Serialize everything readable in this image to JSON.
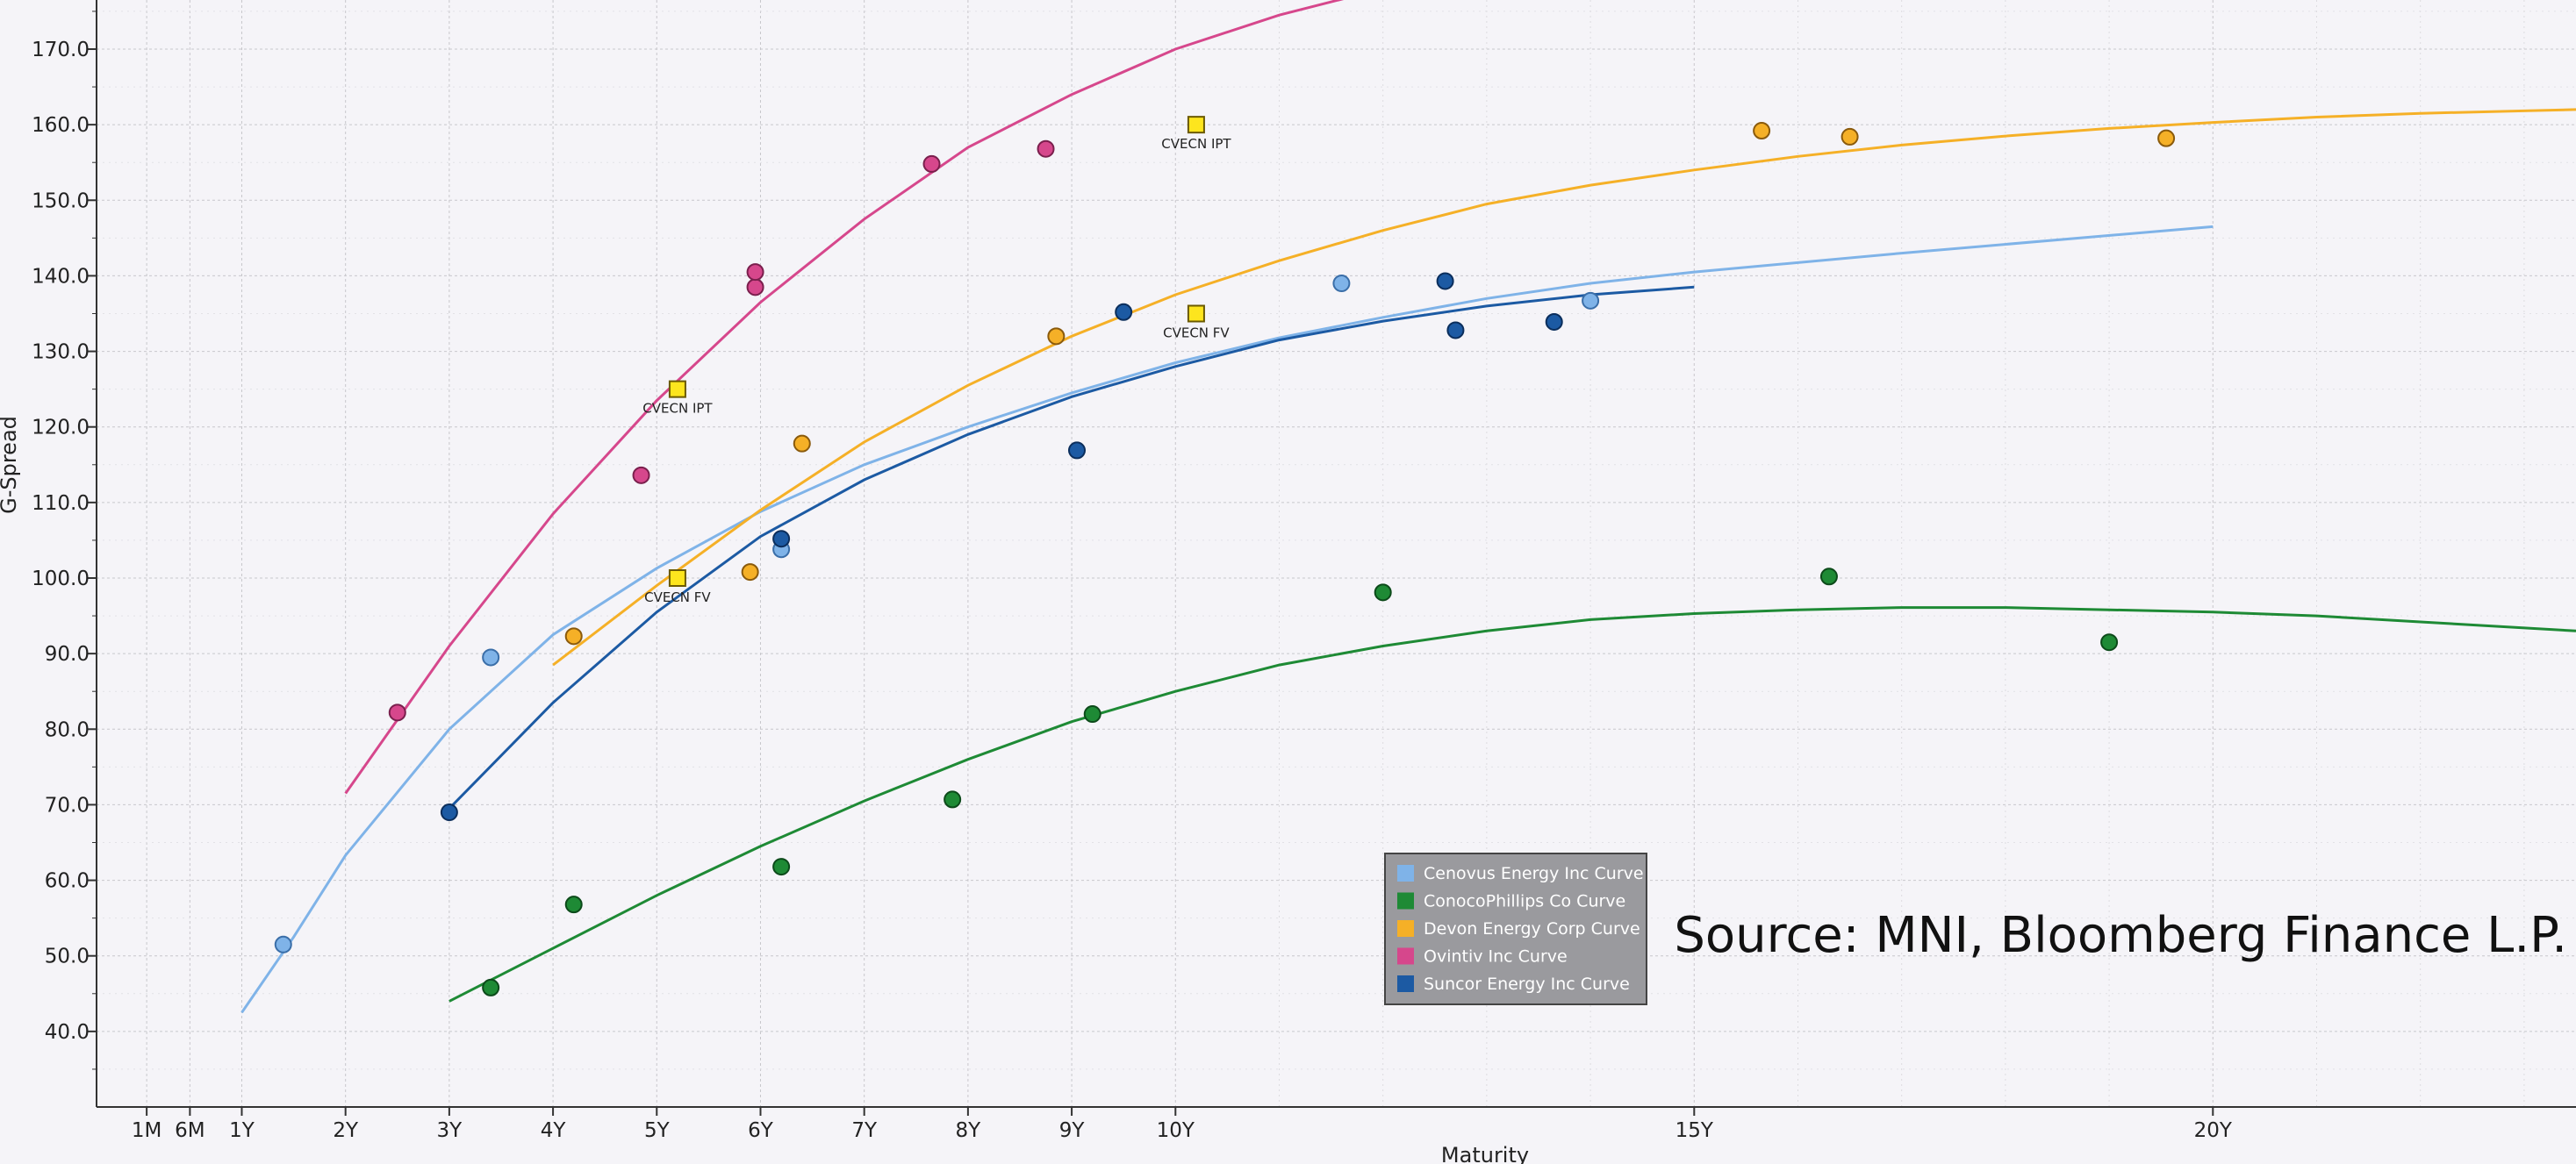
{
  "chart_data": {
    "type": "scatter",
    "xlabel": "Maturity",
    "ylabel": "G-Spread",
    "x_ticks": [
      "1M",
      "6M",
      "1Y",
      "2Y",
      "3Y",
      "4Y",
      "5Y",
      "6Y",
      "7Y",
      "8Y",
      "9Y",
      "10Y",
      "15Y",
      "20Y"
    ],
    "x_tick_values": [
      0.0833,
      0.5,
      1,
      2,
      3,
      4,
      5,
      6,
      7,
      8,
      9,
      10,
      15,
      20
    ],
    "x_range": [
      -0.4,
      23.5
    ],
    "y_ticks": [
      "40.0",
      "50.0",
      "60.0",
      "70.0",
      "80.0",
      "90.0",
      "100.0",
      "110.0",
      "120.0",
      "130.0",
      "140.0",
      "150.0",
      "160.0",
      "170.0"
    ],
    "y_tick_values": [
      40,
      50,
      60,
      70,
      80,
      90,
      100,
      110,
      120,
      130,
      140,
      150,
      160,
      170
    ],
    "ylim": [
      30,
      176.5
    ],
    "grid": true,
    "legend_position": "bottom-center",
    "source_note": "Source: MNI, Bloomberg Finance L.P.",
    "series": [
      {
        "name": "Cenovus Energy Inc Curve",
        "color": "#7fb3e8",
        "edge": "#3a6ea8",
        "points": [
          [
            1.4,
            51.5
          ],
          [
            3.4,
            89.5
          ],
          [
            6.2,
            103.8
          ],
          [
            11.6,
            139.0
          ],
          [
            14.0,
            136.7
          ]
        ],
        "curve": [
          [
            1.0,
            42.5
          ],
          [
            1.5,
            52.5
          ],
          [
            2.0,
            63.3
          ],
          [
            3.0,
            80.0
          ],
          [
            4.0,
            92.5
          ],
          [
            5.0,
            101.3
          ],
          [
            6.0,
            108.8
          ],
          [
            7.0,
            115.0
          ],
          [
            8.0,
            120.0
          ],
          [
            9.0,
            124.5
          ],
          [
            10.0,
            128.5
          ],
          [
            11.0,
            131.8
          ],
          [
            12.0,
            134.5
          ],
          [
            13.0,
            137.0
          ],
          [
            14.0,
            139.0
          ],
          [
            15.0,
            140.5
          ],
          [
            17.0,
            143.0
          ],
          [
            20.0,
            146.5
          ]
        ]
      },
      {
        "name": "ConocoPhillips Co Curve",
        "color": "#1e8a35",
        "edge": "#0c4a1a",
        "points": [
          [
            3.4,
            45.8
          ],
          [
            4.2,
            56.8
          ],
          [
            6.2,
            61.8
          ],
          [
            7.85,
            70.7
          ],
          [
            9.2,
            82.0
          ],
          [
            12.0,
            98.1
          ],
          [
            16.3,
            100.2
          ],
          [
            19.0,
            91.5
          ]
        ],
        "curve": [
          [
            3.0,
            44.0
          ],
          [
            4.0,
            51.0
          ],
          [
            5.0,
            58.0
          ],
          [
            6.0,
            64.5
          ],
          [
            7.0,
            70.5
          ],
          [
            8.0,
            76.0
          ],
          [
            9.0,
            81.0
          ],
          [
            10.0,
            85.0
          ],
          [
            11.0,
            88.5
          ],
          [
            12.0,
            91.0
          ],
          [
            13.0,
            93.0
          ],
          [
            14.0,
            94.5
          ],
          [
            15.0,
            95.3
          ],
          [
            16.0,
            95.8
          ],
          [
            17.0,
            96.1
          ],
          [
            18.0,
            96.1
          ],
          [
            19.0,
            95.8
          ],
          [
            20.0,
            95.5
          ],
          [
            21.0,
            95.0
          ],
          [
            22.0,
            94.2
          ],
          [
            23.5,
            93.0
          ]
        ]
      },
      {
        "name": "Devon Energy Corp Curve",
        "color": "#f5b027",
        "edge": "#8a5a0c",
        "points": [
          [
            4.2,
            92.3
          ],
          [
            5.9,
            100.8
          ],
          [
            6.4,
            117.8
          ],
          [
            8.85,
            132.0
          ],
          [
            15.65,
            159.2
          ],
          [
            16.5,
            158.4
          ],
          [
            19.55,
            158.2
          ]
        ],
        "curve": [
          [
            4.0,
            88.5
          ],
          [
            5.0,
            99.0
          ],
          [
            6.0,
            109.0
          ],
          [
            7.0,
            118.0
          ],
          [
            8.0,
            125.5
          ],
          [
            9.0,
            132.0
          ],
          [
            10.0,
            137.5
          ],
          [
            11.0,
            142.0
          ],
          [
            12.0,
            146.0
          ],
          [
            13.0,
            149.5
          ],
          [
            14.0,
            152.0
          ],
          [
            15.0,
            154.0
          ],
          [
            16.0,
            155.8
          ],
          [
            17.0,
            157.3
          ],
          [
            18.0,
            158.5
          ],
          [
            19.0,
            159.5
          ],
          [
            20.0,
            160.3
          ],
          [
            21.0,
            161.0
          ],
          [
            22.0,
            161.5
          ],
          [
            23.5,
            162.0
          ]
        ]
      },
      {
        "name": "Ovintiv Inc Curve",
        "color": "#d6478c",
        "edge": "#7a1f4d",
        "points": [
          [
            2.5,
            82.2
          ],
          [
            4.85,
            113.6
          ],
          [
            5.95,
            138.5
          ],
          [
            5.95,
            140.5
          ],
          [
            7.65,
            154.8
          ],
          [
            8.75,
            156.8
          ]
        ],
        "curve": [
          [
            2.0,
            71.5
          ],
          [
            3.0,
            91.0
          ],
          [
            4.0,
            108.5
          ],
          [
            5.0,
            123.5
          ],
          [
            6.0,
            136.5
          ],
          [
            7.0,
            147.5
          ],
          [
            8.0,
            157.0
          ],
          [
            9.0,
            164.0
          ],
          [
            10.0,
            170.0
          ],
          [
            11.0,
            174.5
          ],
          [
            12.0,
            178.0
          ]
        ]
      },
      {
        "name": "Suncor Energy Inc Curve",
        "color": "#1c5aa3",
        "edge": "#0b2e5c",
        "points": [
          [
            3.0,
            69.0
          ],
          [
            6.2,
            105.2
          ],
          [
            9.05,
            116.9
          ],
          [
            9.5,
            135.2
          ],
          [
            12.6,
            139.3
          ],
          [
            12.7,
            132.8
          ],
          [
            13.65,
            133.9
          ]
        ],
        "curve": [
          [
            3.0,
            69.5
          ],
          [
            4.0,
            83.5
          ],
          [
            5.0,
            95.5
          ],
          [
            6.0,
            105.5
          ],
          [
            7.0,
            113.0
          ],
          [
            8.0,
            119.0
          ],
          [
            9.0,
            124.0
          ],
          [
            10.0,
            128.0
          ],
          [
            11.0,
            131.5
          ],
          [
            12.0,
            134.0
          ],
          [
            13.0,
            136.0
          ],
          [
            14.0,
            137.5
          ],
          [
            15.0,
            138.5
          ]
        ]
      }
    ],
    "annotations": [
      {
        "label": "CVECN IPT",
        "x": 5.2,
        "y": 125.0
      },
      {
        "label": "CVECN FV",
        "x": 5.2,
        "y": 100.0
      },
      {
        "label": "CVECN IPT",
        "x": 10.2,
        "y": 160.0
      },
      {
        "label": "CVECN FV",
        "x": 10.2,
        "y": 135.0
      }
    ],
    "annotation_marker_color": "#fde51e"
  }
}
